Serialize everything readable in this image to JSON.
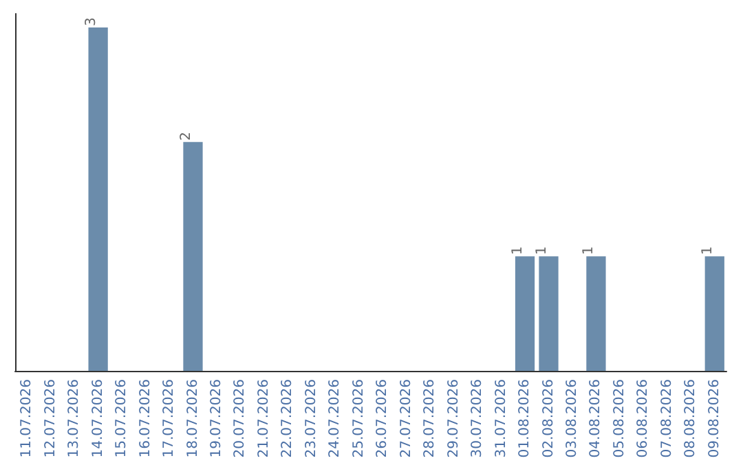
{
  "chart_data": {
    "type": "bar",
    "categories": [
      "11.07.2026",
      "12.07.2026",
      "13.07.2026",
      "14.07.2026",
      "15.07.2026",
      "16.07.2026",
      "17.07.2026",
      "18.07.2026",
      "19.07.2026",
      "20.07.2026",
      "21.07.2026",
      "22.07.2026",
      "23.07.2026",
      "24.07.2026",
      "25.07.2026",
      "26.07.2026",
      "27.07.2026",
      "28.07.2026",
      "29.07.2026",
      "30.07.2026",
      "31.07.2026",
      "01.08.2026",
      "02.08.2026",
      "03.08.2026",
      "04.08.2026",
      "05.08.2026",
      "06.08.2026",
      "07.08.2026",
      "08.08.2026",
      "09.08.2026"
    ],
    "values": [
      0,
      0,
      0,
      3,
      0,
      0,
      0,
      2,
      0,
      0,
      0,
      0,
      0,
      0,
      0,
      0,
      0,
      0,
      0,
      0,
      0,
      1,
      1,
      0,
      1,
      0,
      0,
      0,
      0,
      1
    ],
    "value_labels": [
      null,
      null,
      null,
      "3",
      null,
      null,
      null,
      "2",
      null,
      null,
      null,
      null,
      null,
      null,
      null,
      null,
      null,
      null,
      null,
      null,
      null,
      "1",
      "1",
      null,
      "1",
      null,
      null,
      null,
      null,
      "1"
    ],
    "color": "#6b8cab",
    "tick_labels": "x"
  }
}
